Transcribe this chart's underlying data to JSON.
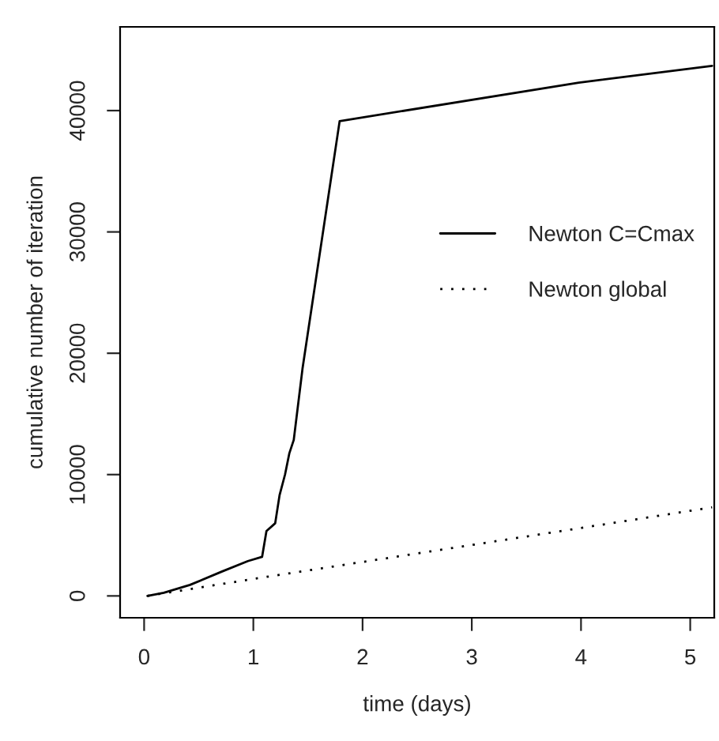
{
  "chart_data": {
    "type": "line",
    "xlabel": "time (days)",
    "ylabel": "cumulative number of iteration",
    "xlim": [
      -0.22,
      5.22
    ],
    "ylim": [
      -1800,
      46900
    ],
    "xticks": [
      0,
      1,
      2,
      3,
      4,
      5
    ],
    "yticks": [
      0,
      10000,
      20000,
      30000,
      40000
    ],
    "grid": false,
    "legend": "right",
    "marker": "none",
    "series": [
      {
        "name": "Newton C=Cmax",
        "color": "#000000",
        "line_style": "solid",
        "x": [
          0.03,
          0.18,
          0.42,
          0.71,
          0.95,
          1.08,
          1.12,
          1.2,
          1.24,
          1.29,
          1.33,
          1.37,
          1.45,
          1.79,
          3.98,
          5.2
        ],
        "values": [
          0,
          260,
          910,
          2000,
          2870,
          3220,
          5340,
          5990,
          8300,
          10000,
          11770,
          12860,
          18720,
          39130,
          42300,
          43690
        ]
      },
      {
        "name": "Newton global",
        "color": "#000000",
        "line_style": "dotted",
        "x": [
          0.03,
          1.0,
          2.0,
          3.0,
          4.0,
          5.2
        ],
        "values": [
          0,
          1400,
          2800,
          4200,
          5600,
          7300
        ]
      }
    ]
  }
}
